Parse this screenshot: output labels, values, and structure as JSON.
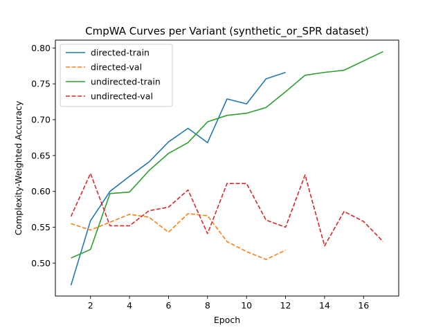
{
  "chart_data": {
    "type": "line",
    "title": "CmpWA Curves per Variant (synthetic_or_SPR dataset)",
    "xlabel": "Epoch",
    "ylabel": "Complexity-Weighted Accuracy",
    "xlim": [
      0.2,
      17.8
    ],
    "ylim": [
      0.454,
      0.811
    ],
    "xticks": [
      2,
      4,
      6,
      8,
      10,
      12,
      14,
      16
    ],
    "yticks": [
      0.5,
      0.55,
      0.6,
      0.65,
      0.7,
      0.75,
      0.8
    ],
    "ytick_labels": [
      "0.50",
      "0.55",
      "0.60",
      "0.65",
      "0.70",
      "0.75",
      "0.80"
    ],
    "grid": false,
    "legend_position": "top-left",
    "series": [
      {
        "name": "directed-train",
        "color": "#1f77b4",
        "style": "solid",
        "x": [
          1,
          2,
          3,
          4,
          5,
          6,
          7,
          8,
          9,
          10,
          11,
          12
        ],
        "y": [
          0.469,
          0.559,
          0.6,
          0.621,
          0.641,
          0.669,
          0.688,
          0.668,
          0.729,
          0.722,
          0.757,
          0.766
        ]
      },
      {
        "name": "directed-val",
        "color": "#ff7f0e",
        "style": "dashed",
        "x": [
          1,
          2,
          3,
          4,
          5,
          6,
          7,
          8,
          9,
          10,
          11,
          12
        ],
        "y": [
          0.555,
          0.546,
          0.557,
          0.568,
          0.564,
          0.543,
          0.569,
          0.566,
          0.53,
          0.516,
          0.505,
          0.518
        ]
      },
      {
        "name": "undirected-train",
        "color": "#2ca02c",
        "style": "solid",
        "x": [
          1,
          2,
          3,
          4,
          5,
          6,
          7,
          8,
          9,
          10,
          11,
          12,
          13,
          14,
          15,
          16,
          17
        ],
        "y": [
          0.507,
          0.519,
          0.597,
          0.599,
          0.629,
          0.653,
          0.668,
          0.697,
          0.706,
          0.709,
          0.717,
          0.739,
          0.762,
          0.766,
          0.769,
          0.782,
          0.795
        ]
      },
      {
        "name": "undirected-val",
        "color": "#d62728",
        "style": "dashed",
        "x": [
          1,
          2,
          3,
          4,
          5,
          6,
          7,
          8,
          9,
          10,
          11,
          12,
          13,
          14,
          15,
          16,
          17
        ],
        "y": [
          0.565,
          0.625,
          0.552,
          0.552,
          0.573,
          0.578,
          0.602,
          0.541,
          0.611,
          0.611,
          0.56,
          0.55,
          0.623,
          0.524,
          0.572,
          0.558,
          0.53
        ]
      }
    ]
  }
}
